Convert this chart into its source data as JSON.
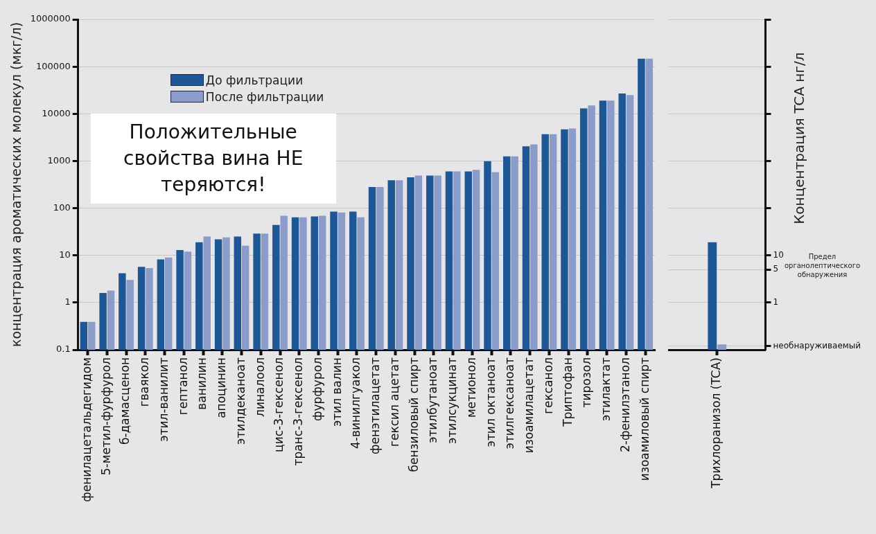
{
  "chart_data": [
    {
      "type": "bar",
      "ylabel": "концентрация ароматических молекул (мкг/л)",
      "categories": [
        "фенилацетальдегидом",
        "5-метил-фурфурол",
        "б-дамасценон",
        "гваякол",
        "этил-ванилит",
        "гептанол",
        "ванилин",
        "апоцинин",
        "этилдеканоат",
        "линалоол",
        "цис-3-гексенол",
        "транс-3-гексенол",
        "фурфурол",
        "этил валин",
        "4-винилгуакол",
        "фенэтилацетат",
        "гексил ацетат",
        "бензиловый спирт",
        "этилбутаноат",
        "этилсукцинат",
        "метионол",
        "этил октаноат",
        "этилгексаноат",
        "изоамилацетат",
        "гексанол",
        "Триптофан",
        "тирозол",
        "этилактат",
        "2-фенилэтанол",
        "изоамиловый спирт"
      ],
      "series": [
        {
          "name": "До фильтрации",
          "color": "#1d5796",
          "values": [
            0.39,
            1.6,
            4.2,
            5.7,
            8.2,
            13,
            19,
            22,
            25,
            29,
            44,
            64,
            67,
            85,
            85,
            280,
            390,
            450,
            490,
            600,
            600,
            990,
            1250,
            2050,
            3700,
            4700,
            13000,
            19000,
            27000,
            147000
          ]
        },
        {
          "name": "После фильтрации",
          "color": "#8c9cc8",
          "values": [
            0.39,
            1.8,
            3.0,
            5.4,
            9.0,
            12,
            25,
            24,
            16,
            29,
            69,
            64,
            69,
            81,
            64,
            280,
            390,
            490,
            490,
            600,
            650,
            580,
            1250,
            2250,
            3700,
            4900,
            15000,
            19000,
            25000,
            147000
          ]
        }
      ],
      "log": true,
      "ylim": [
        0.1,
        1000000
      ],
      "yticks": [
        0.1,
        1,
        10,
        100,
        1000,
        10000,
        100000,
        1000000
      ],
      "grid": "y",
      "legend": "top left",
      "annotations": [
        "Положительные свойства вина НЕ теряются!"
      ]
    },
    {
      "type": "bar",
      "ylabel": "Концентрация TCA нг/л",
      "categories": [
        "Трихлоранизол (TCA)"
      ],
      "series": [
        {
          "color": "#1d5796",
          "values": [
            19
          ]
        },
        {
          "color": "#8c9cc8",
          "values": [
            0.13
          ]
        }
      ],
      "log": true,
      "ylim": [
        0.1,
        1000000
      ],
      "yticks": [
        {
          "value": 0.12,
          "label": "необнаруживаемый"
        },
        1,
        5,
        10,
        {
          "value": 100,
          "label": null
        },
        {
          "value": 1000,
          "label": null
        },
        {
          "value": 10000,
          "label": null
        },
        {
          "value": 100000,
          "label": null
        },
        {
          "value": 1000000,
          "label": null
        }
      ],
      "grid": "y",
      "annotations": [
        "Предел органолептического обнаружения"
      ]
    }
  ]
}
